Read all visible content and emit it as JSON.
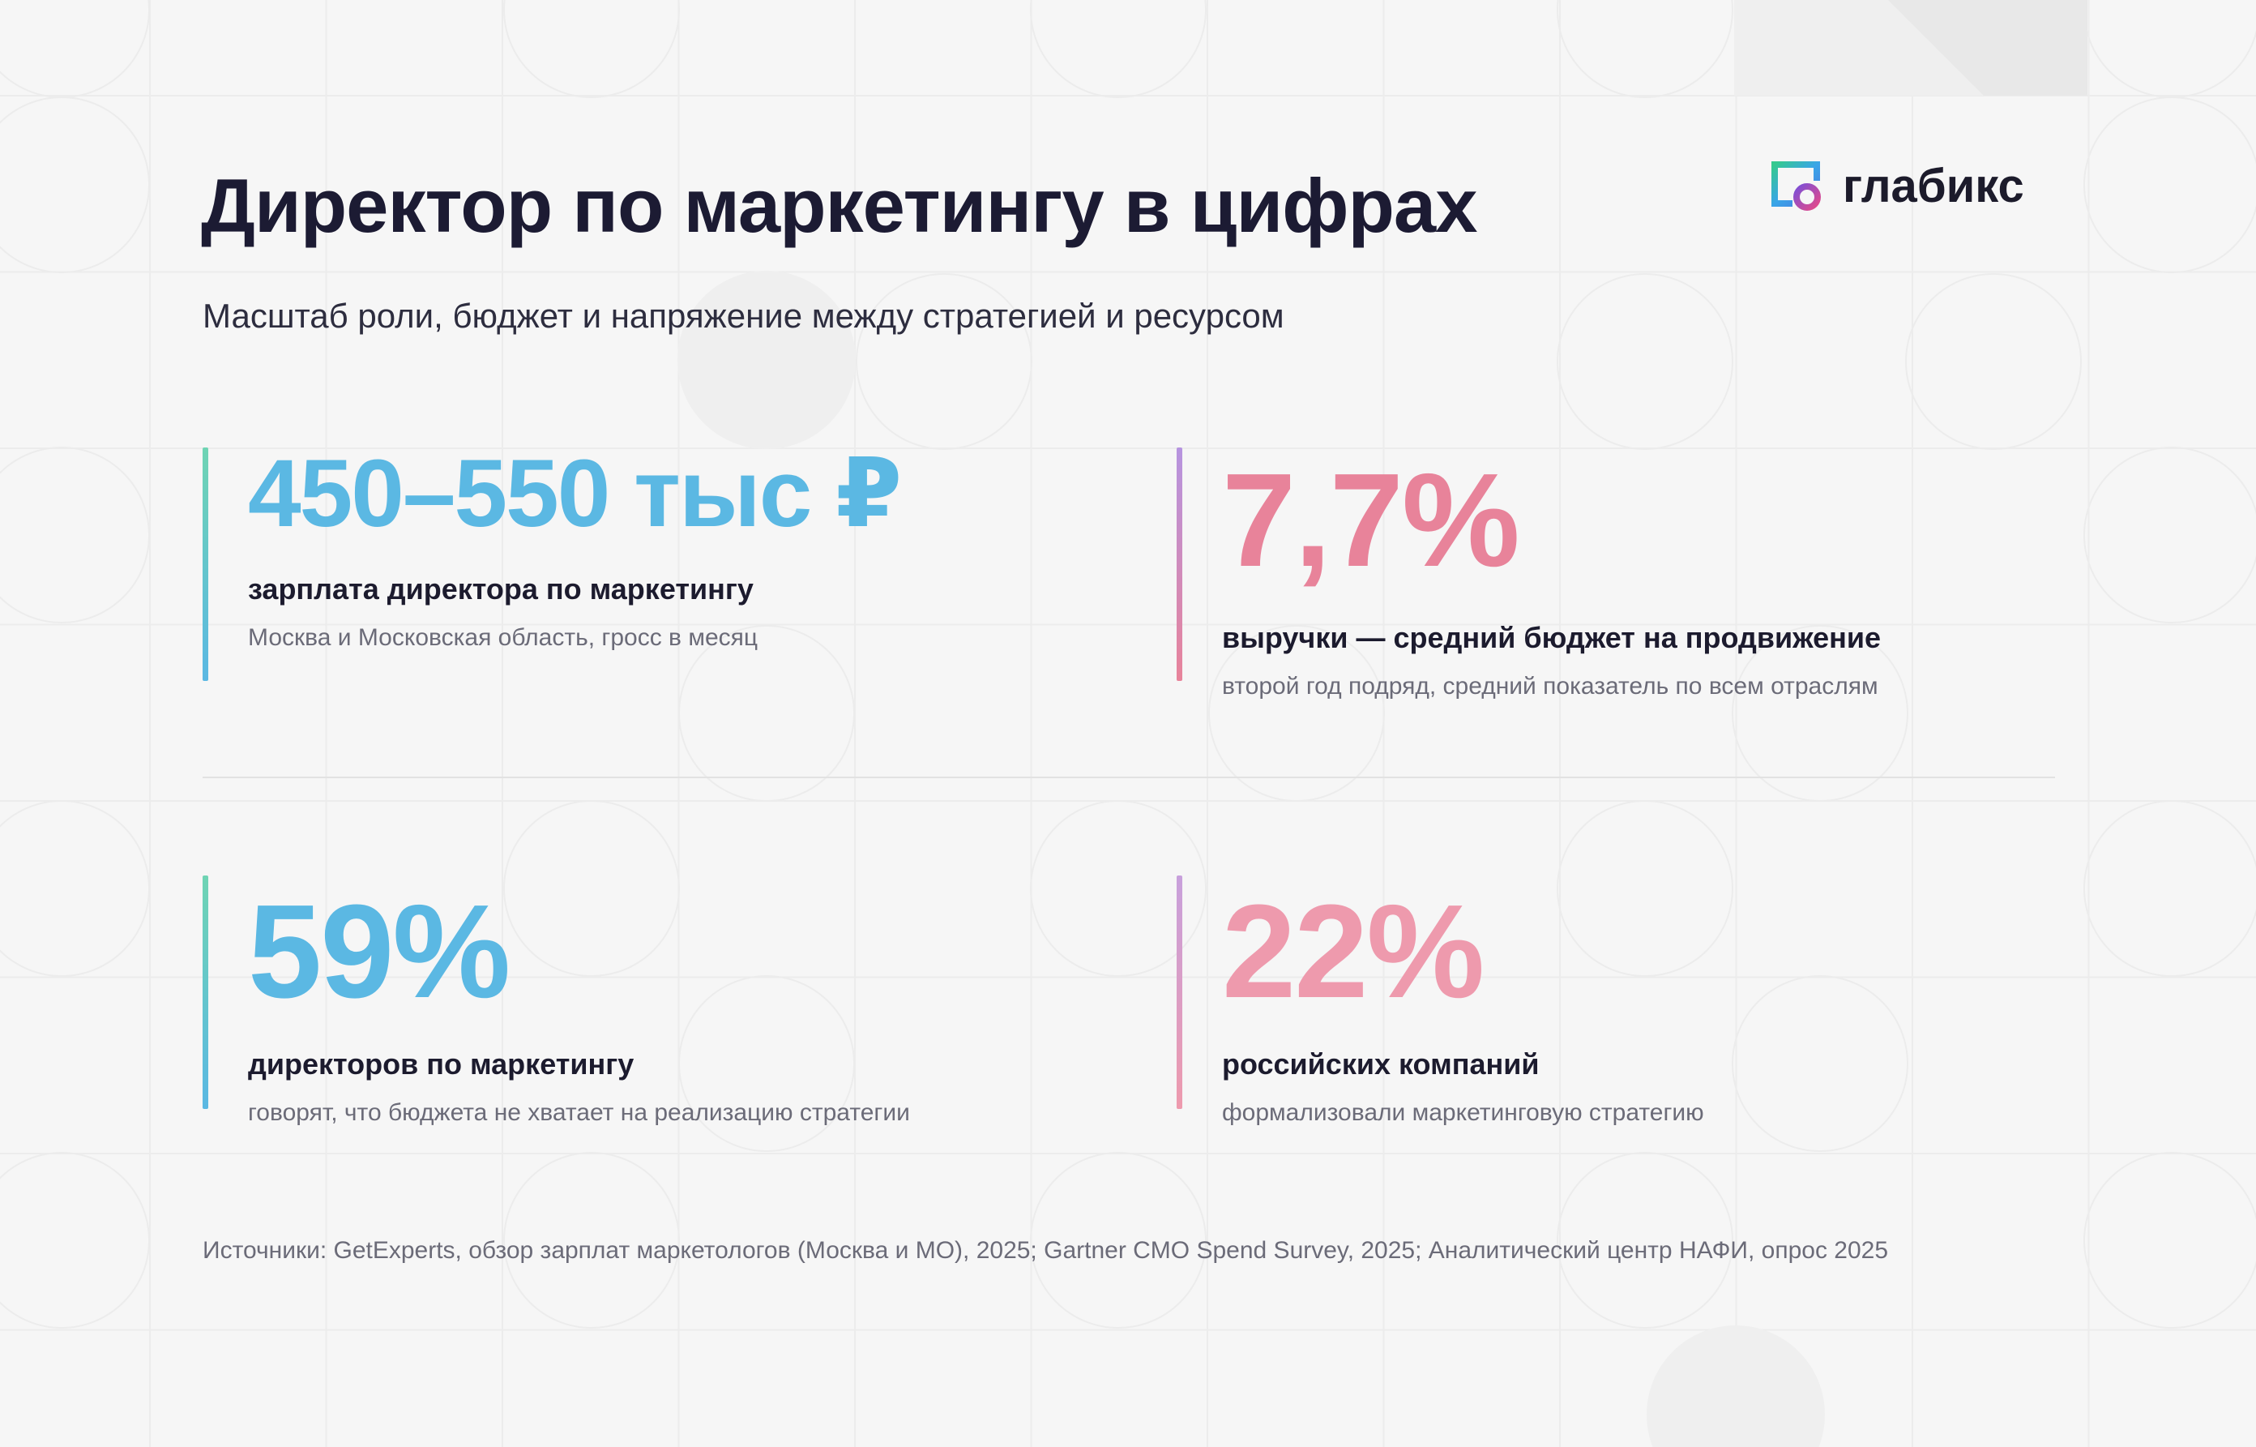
{
  "header": {
    "title": "Директор по маркетингу в цифрах",
    "subtitle": "Масштаб роли, бюджет и напряжение между стратегией и ресурсом"
  },
  "logo": {
    "text": "глабикс"
  },
  "stats": [
    {
      "value": "450–550 тыс ₽",
      "label": "зарплата директора по маркетингу",
      "note": "Москва и Московская область, гросс в месяц"
    },
    {
      "value": "7,7%",
      "label": "выручки — средний бюджет на продвижение",
      "note": "второй год подряд, средний показатель по всем отраслям"
    },
    {
      "value": "59%",
      "label": "директоров по маркетингу",
      "note": "говорят, что бюджета не хватает на реализацию стратегии"
    },
    {
      "value": "22%",
      "label": "российских компаний",
      "note": "формализовали маркетинговую стратегию"
    }
  ],
  "footer": {
    "sources": "Источники: GetExperts, обзор зарплат маркетологов (Москва и МО), 2025; Gartner CMO Spend Survey, 2025; Аналитический центр НАФИ, опрос 2025"
  },
  "colors": {
    "background": "#f6f6f6",
    "accent_blue": "#5bb8e3",
    "accent_pink": "#e8839a",
    "accent_pink_light": "#ee9aad",
    "text_dark": "#1c1b33",
    "text_muted": "#6b6b78"
  }
}
